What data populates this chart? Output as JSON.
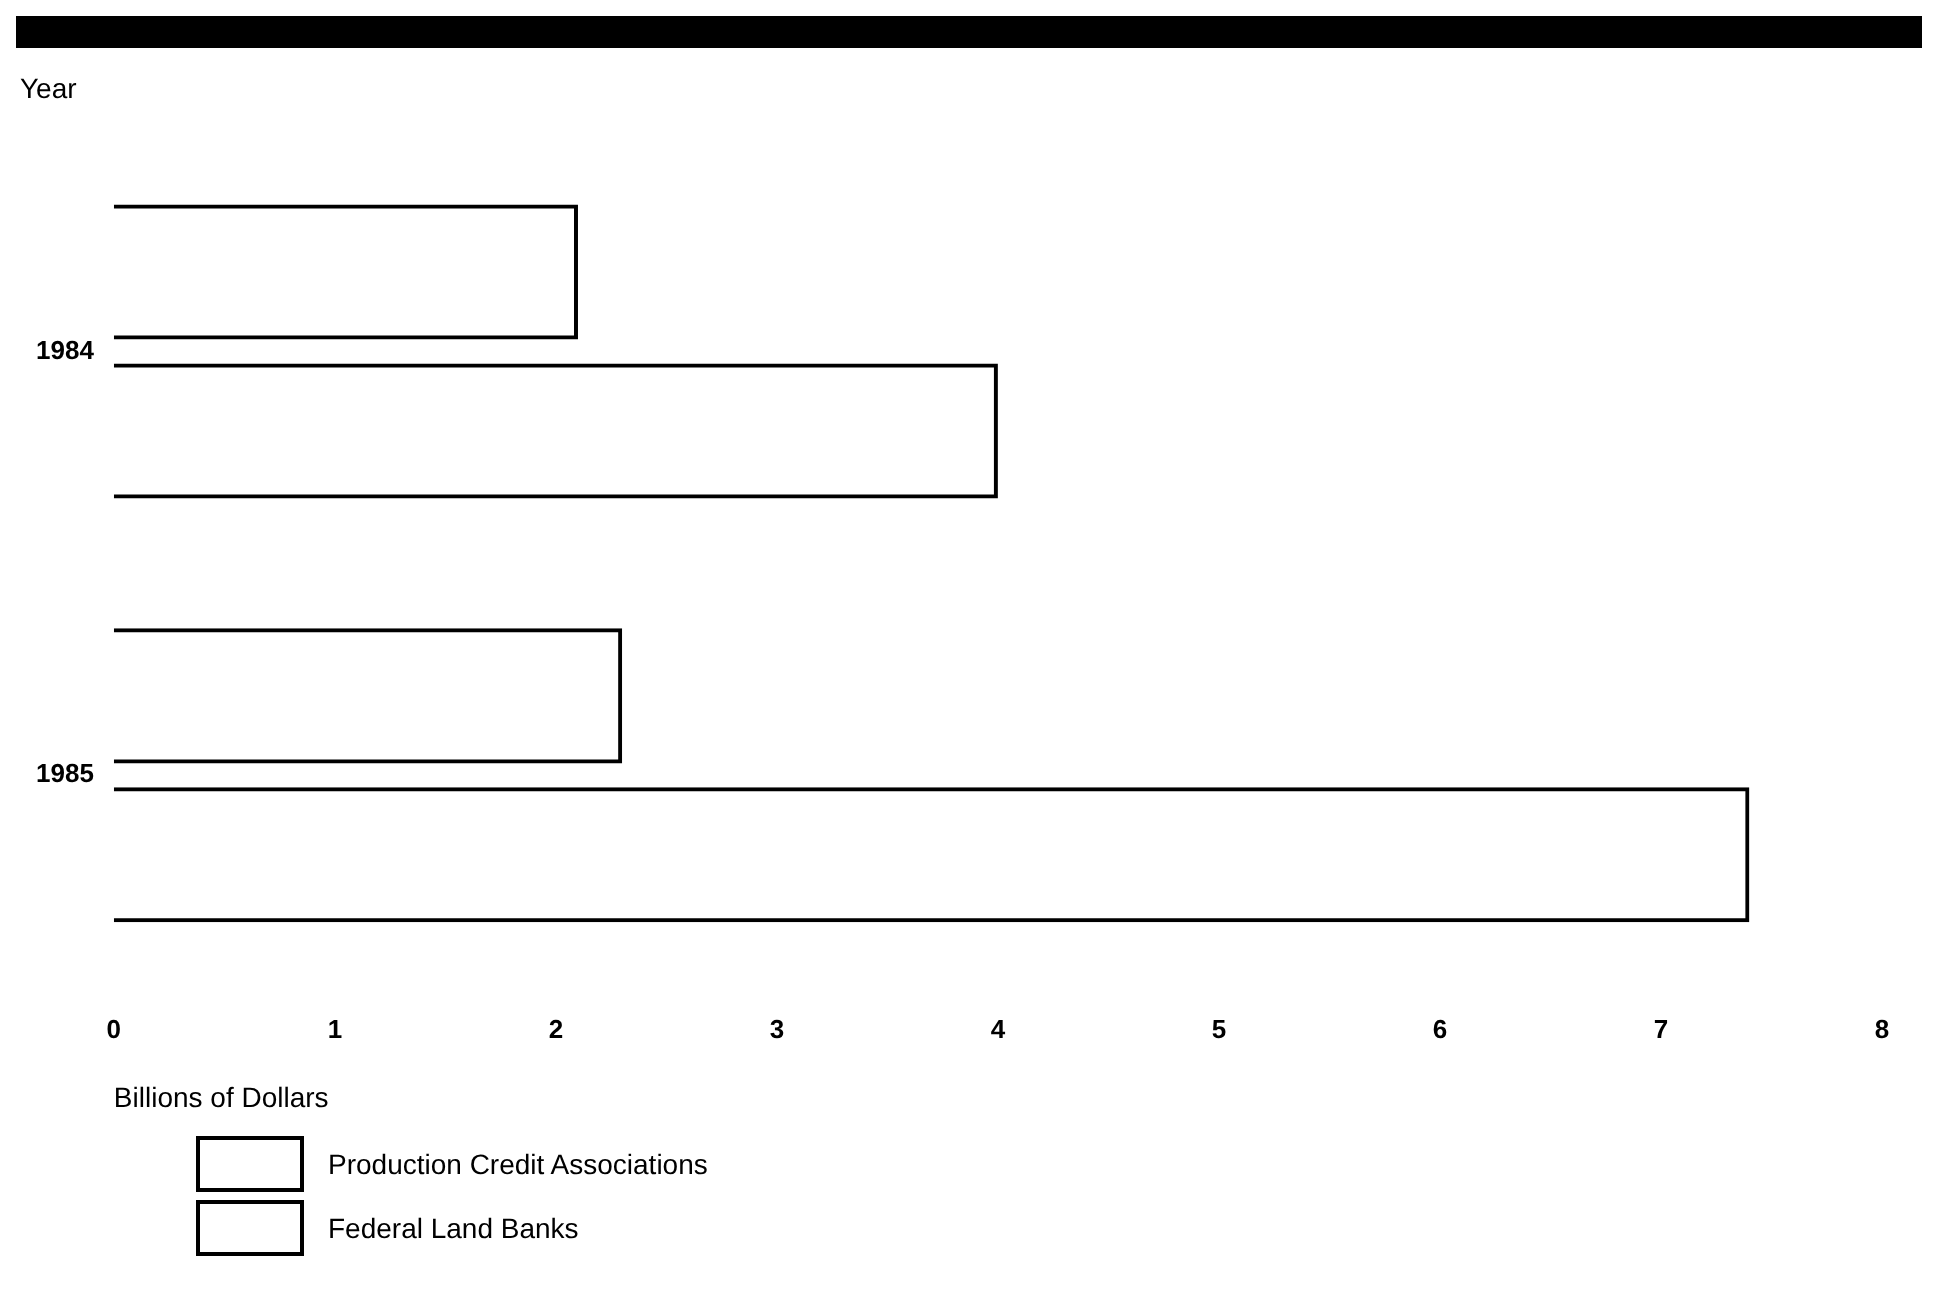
{
  "chart_data": {
    "type": "bar",
    "orientation": "horizontal",
    "ylabel": "Year",
    "xlabel": "Billions of Dollars",
    "categories": [
      "1984",
      "1985"
    ],
    "series": [
      {
        "name": "Production Credit Associations",
        "color": "#000000",
        "values": [
          2.1,
          2.3
        ]
      },
      {
        "name": "Federal Land Banks",
        "color": "#000000",
        "values": [
          4.0,
          7.4
        ]
      }
    ],
    "xlim": [
      0,
      8
    ],
    "xticks": [
      0,
      1,
      2,
      3,
      4,
      5,
      6,
      7,
      8
    ],
    "grid": false,
    "legend": "bottom left"
  }
}
